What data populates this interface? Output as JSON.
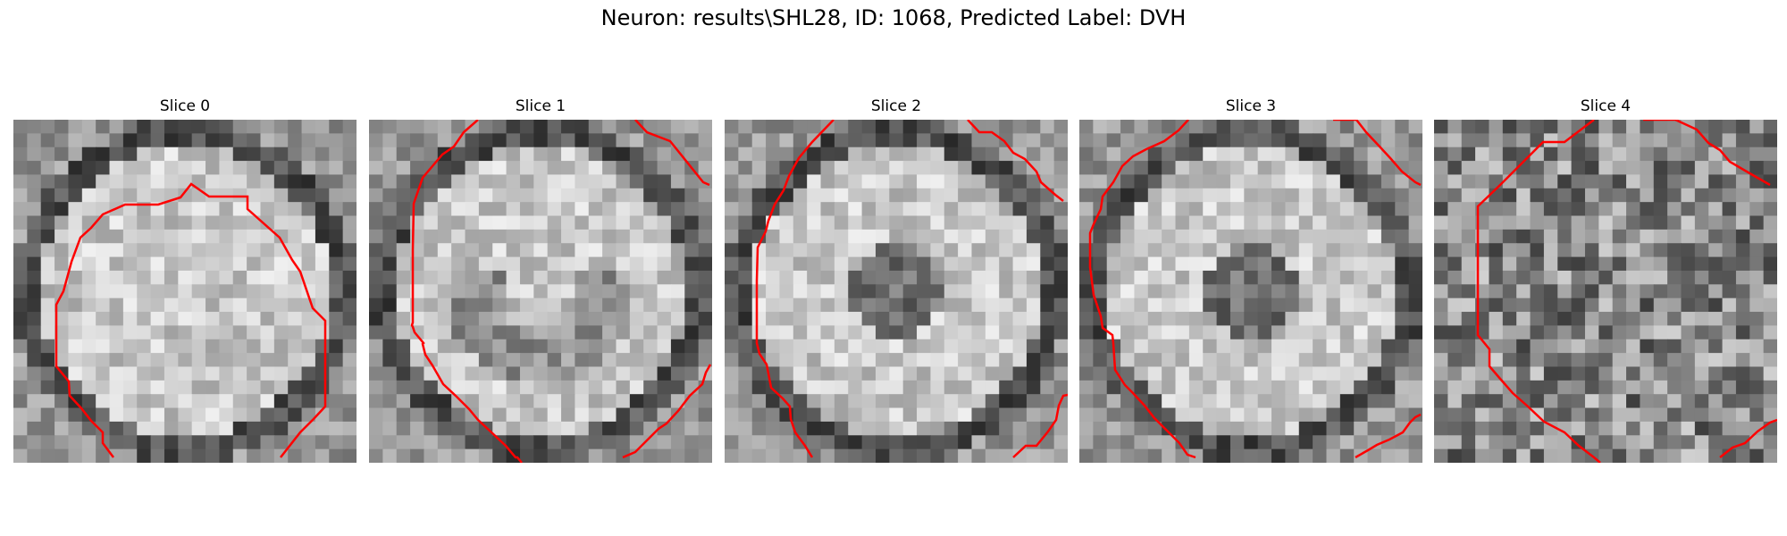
{
  "figure": {
    "title": "Neuron: results\\SHL28, ID: 1068, Predicted Label: DVH"
  },
  "panels": [
    {
      "title": "Slice 0",
      "kind": "filled-ring",
      "seed": 11
    },
    {
      "title": "Slice 1",
      "kind": "swirl",
      "seed": 23
    },
    {
      "title": "Slice 2",
      "kind": "dark-center-ring",
      "seed": 37
    },
    {
      "title": "Slice 3",
      "kind": "dark-center-ring",
      "seed": 41
    },
    {
      "title": "Slice 4",
      "kind": "noise",
      "seed": 53
    }
  ],
  "colors": {
    "contour": "#ff0000"
  }
}
